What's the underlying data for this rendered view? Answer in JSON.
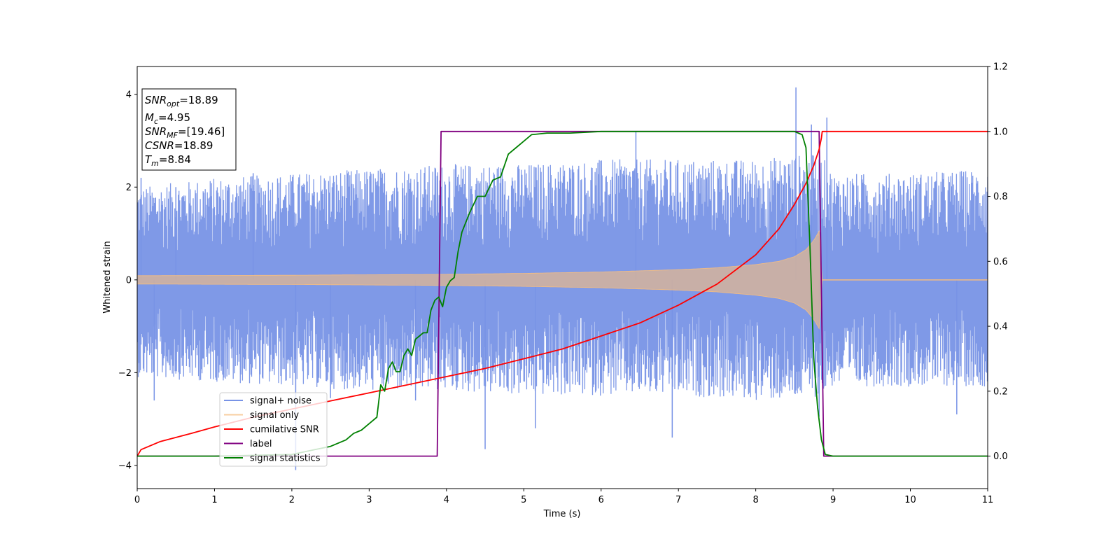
{
  "chart_data": {
    "type": "line",
    "xlabel": "Time (s)",
    "ylabel": "Whitened strain",
    "xlim": [
      0,
      11
    ],
    "ylim_left": [
      -4.5,
      4.6
    ],
    "ylim_right": [
      -0.1,
      1.2
    ],
    "x_ticks": [
      "0",
      "1",
      "2",
      "3",
      "4",
      "5",
      "6",
      "7",
      "8",
      "9",
      "10",
      "11"
    ],
    "y_ticks_left": [
      "−4",
      "−2",
      "0",
      "2",
      "4"
    ],
    "y_ticks_right": [
      "0.0",
      "0.2",
      "0.4",
      "0.6",
      "0.8",
      "1.0",
      "1.2"
    ],
    "grid": false,
    "legend_position": "lower-left",
    "series": [
      {
        "name": "signal+ noise",
        "axis": "left",
        "color": "#7893e6",
        "envelope": {
          "x": [
            0,
            1,
            2,
            3,
            4,
            5,
            6,
            7,
            8,
            8.5,
            8.85,
            9,
            10,
            11
          ],
          "upper": [
            2.0,
            2.2,
            2.3,
            2.4,
            2.5,
            2.5,
            2.6,
            2.6,
            2.6,
            2.7,
            2.7,
            2.3,
            2.3,
            2.4
          ],
          "lower": [
            -2.1,
            -2.2,
            -2.3,
            -2.4,
            -2.4,
            -2.5,
            -2.5,
            -2.5,
            -2.6,
            -2.6,
            -2.5,
            -2.3,
            -2.3,
            -2.3
          ]
        },
        "spikes": [
          [
            0.05,
            2.2
          ],
          [
            0.22,
            -2.6
          ],
          [
            2.05,
            -4.1
          ],
          [
            2.5,
            -2.55
          ],
          [
            4.5,
            -3.65
          ],
          [
            5.15,
            -3.2
          ],
          [
            6.45,
            3.2
          ],
          [
            6.92,
            -3.4
          ],
          [
            8.52,
            4.15
          ],
          [
            8.72,
            3.35
          ],
          [
            8.82,
            -2.95
          ],
          [
            8.92,
            3.5
          ],
          [
            10.6,
            -2.9
          ],
          [
            0.5,
            2.0
          ],
          [
            1.5,
            2.3
          ],
          [
            3.6,
            -2.6
          ]
        ]
      },
      {
        "name": "signal only",
        "axis": "left",
        "color": "#f5bd80",
        "envelope": {
          "x": [
            0,
            2,
            4,
            5,
            6,
            7,
            7.5,
            8,
            8.3,
            8.5,
            8.65,
            8.75,
            8.82,
            8.86
          ],
          "amplitude": [
            0.09,
            0.1,
            0.12,
            0.14,
            0.17,
            0.22,
            0.26,
            0.33,
            0.4,
            0.5,
            0.65,
            0.85,
            1.05,
            0
          ]
        },
        "flat_after": 8.86
      },
      {
        "name": "cumilative SNR",
        "axis": "right",
        "color": "#ff0000",
        "x": [
          0,
          0.05,
          0.3,
          0.7,
          1,
          1.5,
          2,
          2.5,
          3,
          3.5,
          4,
          4.5,
          5,
          5.5,
          6,
          6.5,
          7,
          7.5,
          8,
          8.3,
          8.5,
          8.65,
          8.75,
          8.82,
          8.85,
          8.86,
          11
        ],
        "y": [
          0.0,
          0.02,
          0.045,
          0.07,
          0.09,
          0.12,
          0.145,
          0.17,
          0.195,
          0.22,
          0.245,
          0.27,
          0.3,
          0.33,
          0.37,
          0.41,
          0.465,
          0.53,
          0.62,
          0.7,
          0.775,
          0.84,
          0.895,
          0.945,
          0.98,
          1.0,
          1.0
        ]
      },
      {
        "name": "label",
        "axis": "right",
        "color": "#800080",
        "x": [
          0,
          3.88,
          3.93,
          8.82,
          8.88,
          11
        ],
        "y": [
          0.0,
          0.0,
          1.0,
          1.0,
          0.0,
          0.0
        ]
      },
      {
        "name": "signal statistics",
        "axis": "right",
        "color": "#008000",
        "x": [
          0,
          1,
          2,
          2.3,
          2.5,
          2.7,
          2.8,
          2.9,
          3.0,
          3.1,
          3.15,
          3.2,
          3.25,
          3.3,
          3.35,
          3.4,
          3.45,
          3.5,
          3.55,
          3.6,
          3.65,
          3.7,
          3.75,
          3.8,
          3.85,
          3.9,
          3.95,
          4.0,
          4.05,
          4.1,
          4.15,
          4.2,
          4.3,
          4.4,
          4.45,
          4.5,
          4.6,
          4.7,
          4.8,
          4.9,
          5.0,
          5.1,
          5.3,
          5.6,
          6.0,
          6.5,
          7.0,
          7.5,
          8.0,
          8.5,
          8.6,
          8.65,
          8.7,
          8.75,
          8.8,
          8.85,
          8.9,
          9.0,
          11
        ],
        "y": [
          0.0,
          0.0,
          0.005,
          0.02,
          0.03,
          0.05,
          0.07,
          0.08,
          0.1,
          0.12,
          0.22,
          0.2,
          0.27,
          0.29,
          0.26,
          0.26,
          0.31,
          0.33,
          0.31,
          0.36,
          0.37,
          0.38,
          0.38,
          0.45,
          0.48,
          0.49,
          0.46,
          0.52,
          0.54,
          0.55,
          0.63,
          0.69,
          0.75,
          0.8,
          0.8,
          0.8,
          0.85,
          0.86,
          0.93,
          0.95,
          0.97,
          0.99,
          0.995,
          0.995,
          1.0,
          1.0,
          1.0,
          1.0,
          1.0,
          1.0,
          0.99,
          0.95,
          0.65,
          0.3,
          0.15,
          0.05,
          0.005,
          0.0,
          0.0
        ]
      }
    ]
  },
  "info_box": {
    "lines": [
      {
        "main": "SNR",
        "sub": "opt",
        "value": "=18.89"
      },
      {
        "main": "M",
        "sub": "c",
        "value": "=4.95"
      },
      {
        "main": "SNR",
        "sub": "MF",
        "value": "=[19.46]"
      },
      {
        "main": "CSNR",
        "sub": "",
        "value": "=18.89"
      },
      {
        "main": "T",
        "sub": "m",
        "value": "=8.84"
      }
    ]
  }
}
